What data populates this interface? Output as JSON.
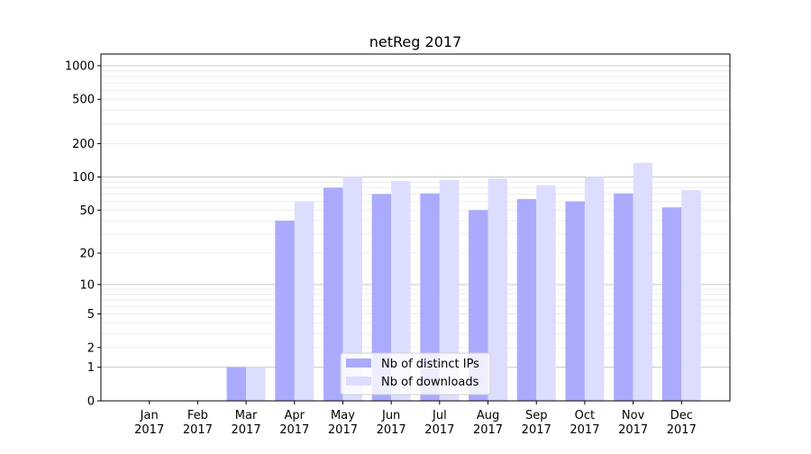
{
  "chart_data": {
    "type": "bar",
    "title": "netReg 2017",
    "xlabel": "",
    "ylabel": "",
    "yscale": "log(1+y)",
    "ylim": [
      0,
      1300
    ],
    "xlim": [
      -1,
      12
    ],
    "grid": true,
    "legend_position": "lower center",
    "categories": [
      "Jan\n2017",
      "Feb\n2017",
      "Mar\n2017",
      "Apr\n2017",
      "May\n2017",
      "Jun\n2017",
      "Jul\n2017",
      "Aug\n2017",
      "Sep\n2017",
      "Oct\n2017",
      "Nov\n2017",
      "Dec\n2017"
    ],
    "yticks": [
      0,
      1,
      2,
      5,
      10,
      20,
      50,
      100,
      200,
      500,
      1000
    ],
    "series": [
      {
        "name": "Nb of distinct IPs",
        "color": "#aaaaff",
        "values": [
          0,
          0,
          1,
          40,
          80,
          70,
          71,
          50,
          63,
          60,
          71,
          53
        ]
      },
      {
        "name": "Nb of downloads",
        "color": "#ddddff",
        "values": [
          0,
          0,
          1,
          60,
          100,
          92,
          94,
          97,
          84,
          100,
          134,
          76
        ]
      }
    ]
  }
}
